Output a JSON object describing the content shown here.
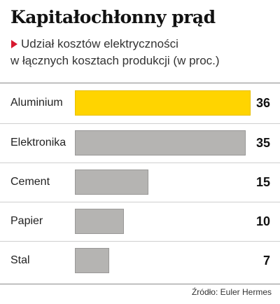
{
  "chart_data": {
    "type": "bar",
    "orientation": "horizontal",
    "title": "Kapitałochłonny prąd",
    "subtitle_line1": "Udział kosztów elektryczności",
    "subtitle_line2": "w łącznych kosztach produkcji (w proc.)",
    "categories": [
      "Aluminium",
      "Elektronika",
      "Cement",
      "Papier",
      "Stal"
    ],
    "values": [
      36,
      35,
      15,
      10,
      7
    ],
    "value_labels": [
      "36",
      "35",
      "15",
      "10",
      "7"
    ],
    "highlight_index": 0,
    "xlim": [
      0,
      36
    ],
    "grid": false,
    "legend": "none",
    "colors": {
      "highlight": "#ffd400",
      "bar": "#b5b4b2",
      "accent_marker": "#d7192f"
    },
    "source": "Źródło: Euler Hermes"
  }
}
